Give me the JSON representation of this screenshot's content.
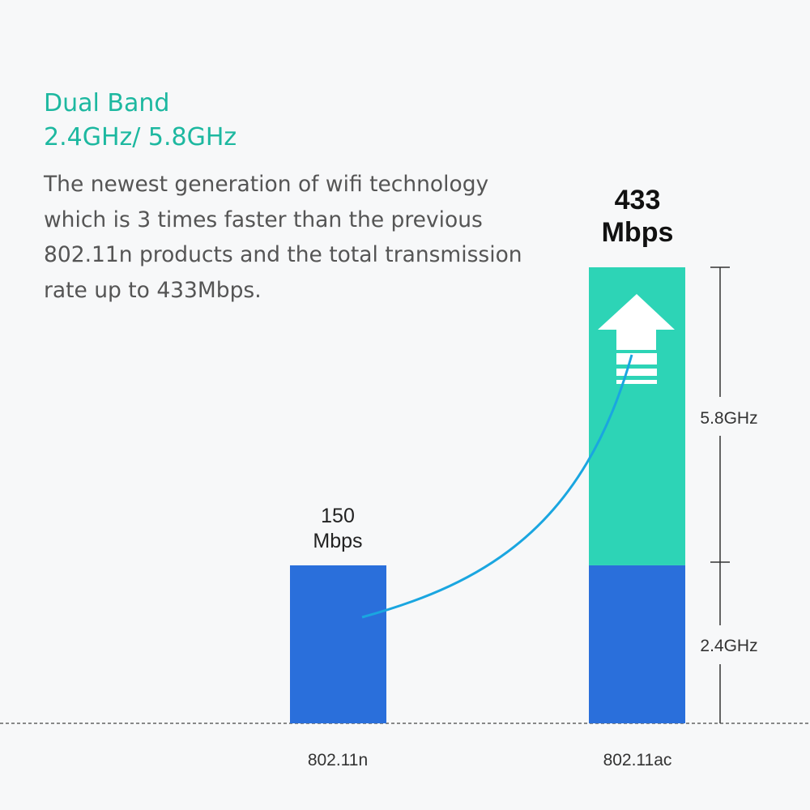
{
  "header": {
    "title_line1": "Dual Band",
    "title_line2": "2.4GHz/ 5.8GHz",
    "description": [
      "The newest generation of wifi technology",
      "which is 3 times faster than the previous",
      "802.11n products and the total transmission",
      "rate up to 433Mbps."
    ]
  },
  "chart_data": {
    "type": "bar",
    "stacked": true,
    "categories": [
      "802.11n",
      "802.11ac"
    ],
    "series": [
      {
        "name": "2.4GHz",
        "values": [
          150,
          150
        ],
        "color": "#2a6fdb"
      },
      {
        "name": "5.8GHz",
        "values": [
          0,
          283
        ],
        "color": "#2dd4b6"
      }
    ],
    "data_labels": [
      {
        "value": "150",
        "unit": "Mbps"
      },
      {
        "value": "433",
        "unit": "Mbps"
      }
    ],
    "ylim": [
      0,
      433
    ],
    "grid": false,
    "legend": "right-side bracket",
    "icons": [
      "up-arrow-icon",
      "curve-connector"
    ]
  }
}
